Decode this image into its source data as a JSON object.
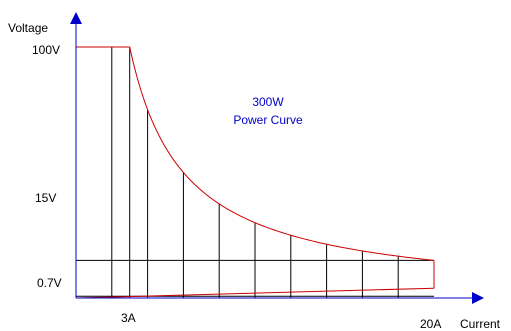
{
  "chart_data": {
    "type": "line",
    "title": "",
    "xlabel": "Current",
    "ylabel": "Voltage",
    "x_ticks": [
      {
        "value": 3,
        "label": "3A"
      },
      {
        "value": 20,
        "label": "20A"
      }
    ],
    "y_ticks": [
      {
        "value": 100,
        "label": "100V"
      },
      {
        "value": 15,
        "label": "15V"
      },
      {
        "value": 0.7,
        "label": "0.7V"
      }
    ],
    "annotation": {
      "line1": "300W",
      "line2": "Power Curve"
    },
    "power_watts": 300,
    "series": [
      {
        "points": [
          [
            0,
            100
          ],
          [
            3,
            100
          ],
          [
            4,
            75
          ],
          [
            6,
            50
          ],
          [
            8,
            37.5
          ],
          [
            10,
            30
          ],
          [
            12,
            25
          ],
          [
            14,
            21.4
          ],
          [
            16,
            18.75
          ],
          [
            18,
            16.7
          ],
          [
            20,
            15
          ],
          [
            20,
            0.7
          ],
          [
            0,
            0
          ]
        ],
        "color": "#cc0000"
      }
    ],
    "grid_lines": {
      "vertical_x": [
        2,
        3,
        4,
        6,
        8,
        10,
        12,
        14,
        16,
        18
      ],
      "horizontal_y": [
        15,
        0.7
      ]
    },
    "colors": {
      "axis": "#0000cc",
      "curve": "#cc0000",
      "grid": "#000000",
      "annotation": "#0000cc"
    }
  }
}
